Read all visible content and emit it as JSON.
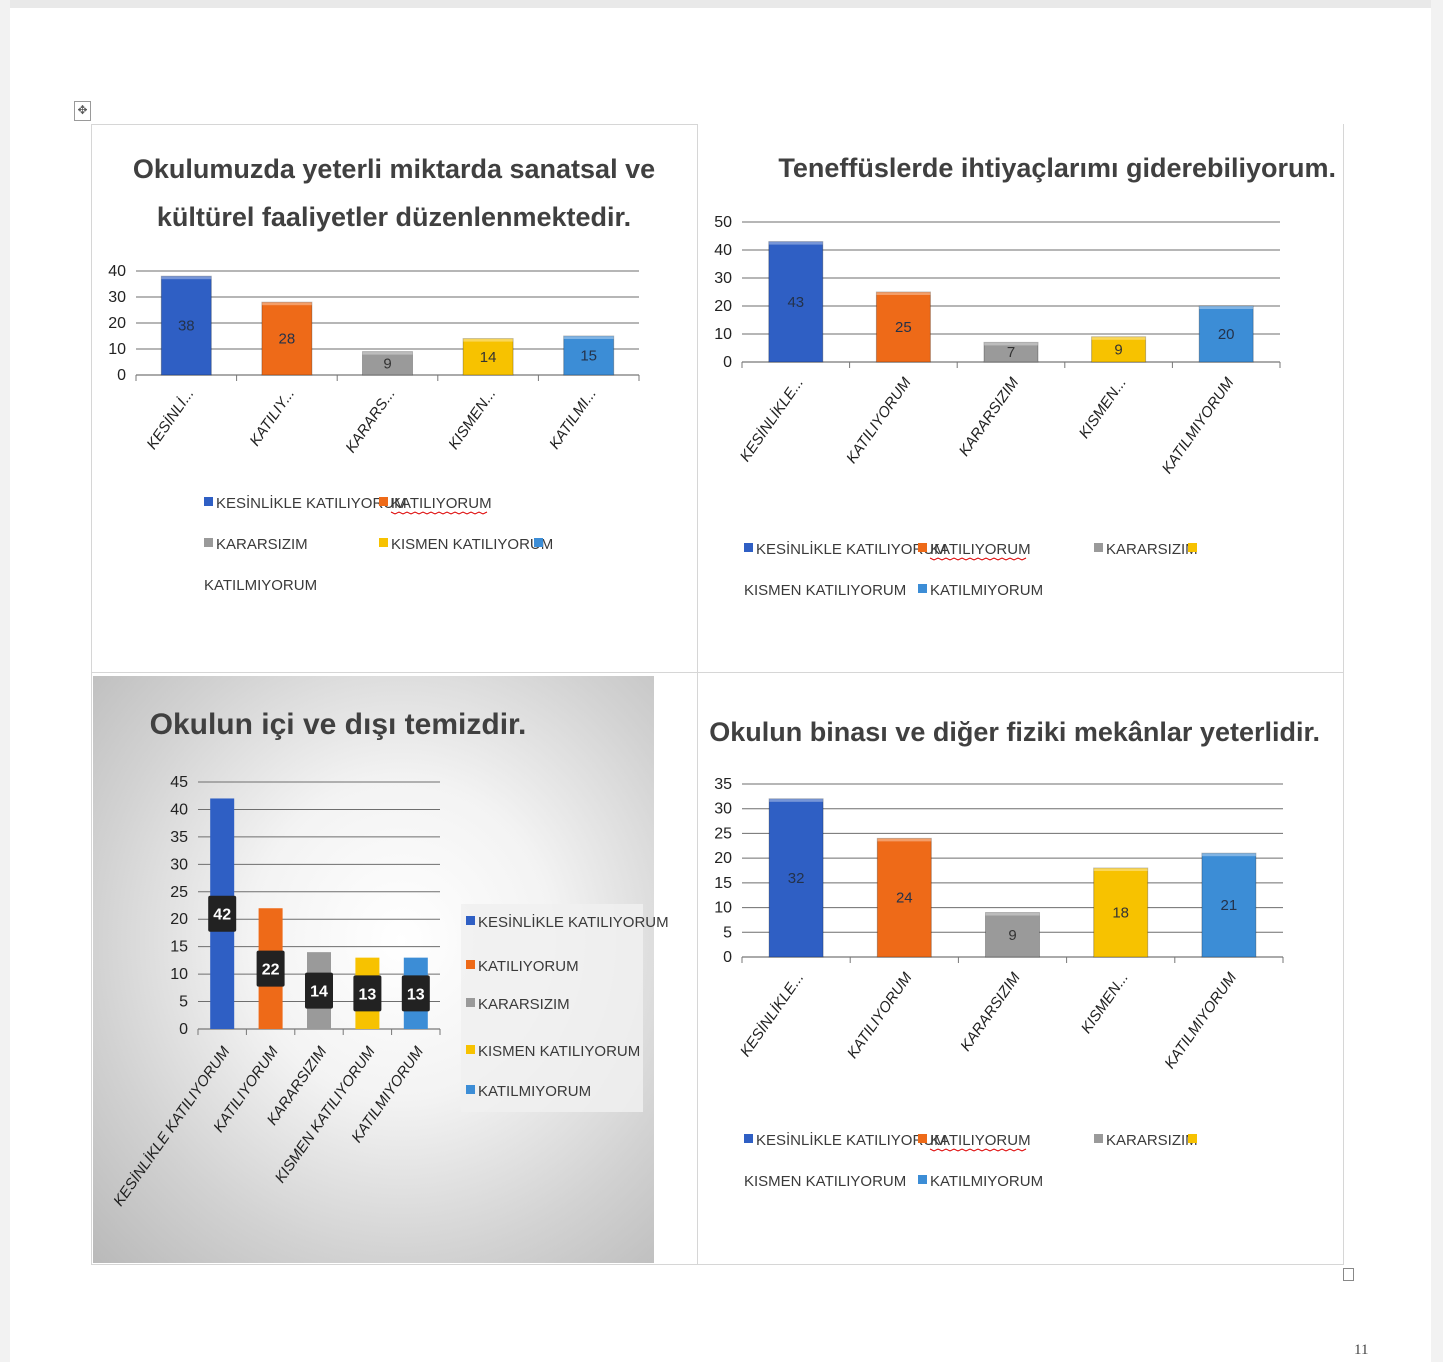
{
  "document": {
    "page_number": "11",
    "move_handle_glyph": "✥"
  },
  "colors": {
    "blue": "#2f5fc4",
    "orange": "#ee6a18",
    "gray": "#9a9a9a",
    "yellow": "#f7c200",
    "lightblue": "#3c8dd6",
    "grid": "#6e6e6e",
    "text": "#404040"
  },
  "chart_data": [
    {
      "type": "bar",
      "title": [
        "Okulumuzda yeterli miktarda sanatsal ve",
        "kültürel faaliyetler düzenlenmektedir."
      ],
      "categories": [
        "KESİNLİ...",
        "KATILIY...",
        "KARARS...",
        "KISMEN...",
        "KATILMI..."
      ],
      "values": [
        38,
        28,
        9,
        14,
        15
      ],
      "ylim": [
        0,
        40
      ],
      "yticks": [
        0,
        10,
        20,
        30,
        40
      ],
      "legend_position": "bottom",
      "legend": [
        "KESİNLİKLE KATILIYORUM",
        "KATILIYORUM",
        "KARARSIZIM",
        "KISMEN KATILIYORUM",
        "KATILMIYORUM"
      ],
      "grid": true
    },
    {
      "type": "bar",
      "title": [
        "Teneffüslerde ihtiyaçlarımı giderebiliyorum."
      ],
      "categories": [
        "KESİNLİKLE...",
        "KATILIYORUM",
        "KARARSIZIM",
        "KISMEN...",
        "KATILMIYORUM"
      ],
      "values": [
        43,
        25,
        7,
        9,
        20
      ],
      "ylim": [
        0,
        50
      ],
      "yticks": [
        0,
        10,
        20,
        30,
        40,
        50
      ],
      "legend_position": "bottom",
      "legend": [
        "KESİNLİKLE KATILIYORUM",
        "KATILIYORUM",
        "KARARSIZIM",
        "KISMEN KATILIYORUM",
        "KATILMIYORUM"
      ],
      "grid": true
    },
    {
      "type": "bar",
      "title": [
        "Okulun içi ve dışı temizdir."
      ],
      "categories": [
        "KESİNLİKLE KATILIYORUM",
        "KATILIYORUM",
        "KARARSIZIM",
        "KISMEN KATILIYORUM",
        "KATILMIYORUM"
      ],
      "values": [
        42,
        22,
        14,
        13,
        13
      ],
      "ylim": [
        0,
        45
      ],
      "yticks": [
        0,
        5,
        10,
        15,
        20,
        25,
        30,
        35,
        40,
        45
      ],
      "legend_position": "right",
      "legend": [
        "KESİNLİKLE KATILIYORUM",
        "KATILIYORUM",
        "KARARSIZIM",
        "KISMEN KATILIYORUM",
        "KATILMIYORUM"
      ],
      "grid": true
    },
    {
      "type": "bar",
      "title": [
        "Okulun binası ve diğer fiziki mekânlar yeterlidir."
      ],
      "categories": [
        "KESİNLİKLE...",
        "KATILIYORUM",
        "KARARSIZIM",
        "KISMEN...",
        "KATILMIYORUM"
      ],
      "values": [
        32,
        24,
        9,
        18,
        21
      ],
      "ylim": [
        0,
        35
      ],
      "yticks": [
        0,
        5,
        10,
        15,
        20,
        25,
        30,
        35
      ],
      "legend_position": "bottom",
      "legend": [
        "KESİNLİKLE KATILIYORUM",
        "KATILIYORUM",
        "KARARSIZIM",
        "KISMEN KATILIYORUM",
        "KATILMIYORUM"
      ],
      "grid": true
    }
  ]
}
